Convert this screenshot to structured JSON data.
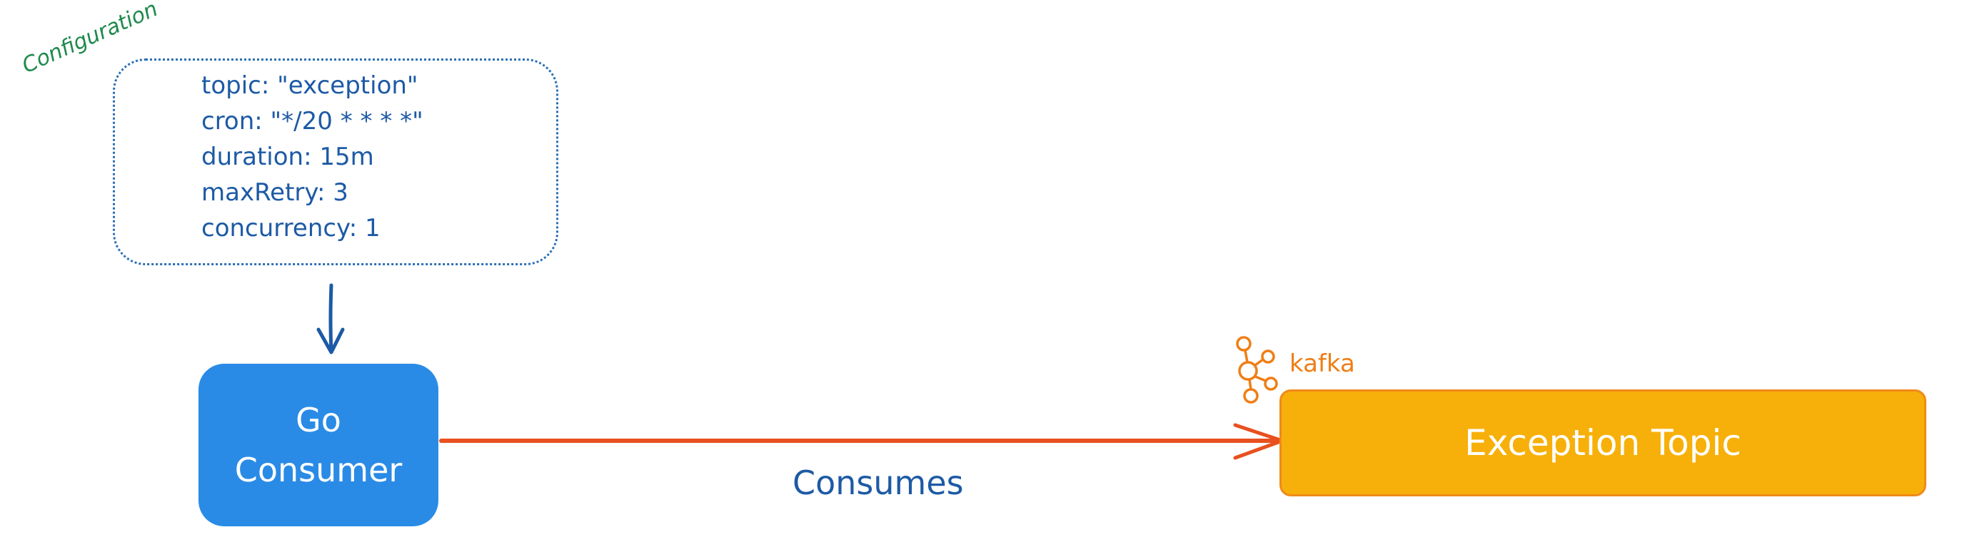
{
  "diagram": {
    "config_label": "Configuration",
    "config_lines": [
      "topic: \"exception\"",
      "cron: \"*/20 * * * *\"",
      "duration: 15m",
      "maxRetry: 3",
      "concurrency: 1"
    ],
    "consumer": {
      "line1": "Go",
      "line2": "Consumer"
    },
    "topic": {
      "label": "Exception Topic",
      "platform": "kafka"
    },
    "edge_label": "Consumes",
    "colors": {
      "config_text": "#1d5aa5",
      "config_label": "#1f8a4c",
      "consumer_fill": "#2a8be6",
      "topic_fill": "#f7b00a",
      "topic_border": "#f08a1a",
      "kafka": "#ef7e16",
      "edge": "#e8501f"
    }
  }
}
